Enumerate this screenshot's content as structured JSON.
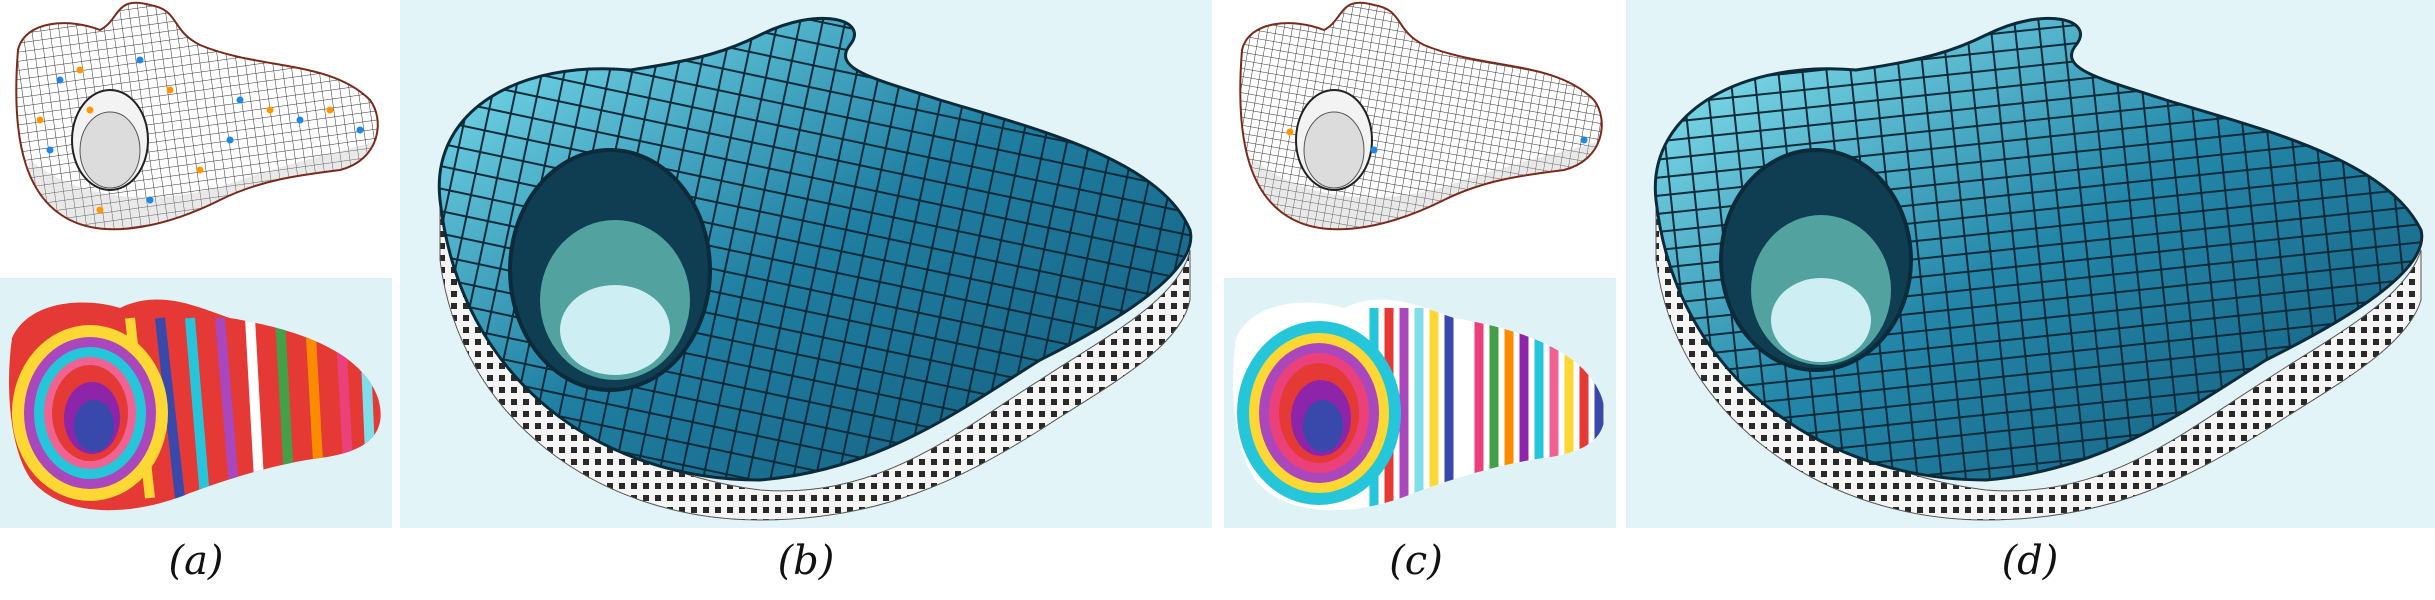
{
  "figure": {
    "captions": {
      "a": "(a)",
      "b": "(b)",
      "c": "(c)",
      "d": "(d)"
    }
  },
  "colors": {
    "wire_stroke": "#222222",
    "boundary_stroke": "#7a2a1a",
    "singular_blue": "#1e88e5",
    "singular_orange": "#ff9800",
    "glass_dark": "#145a7a",
    "glass_light": "#7fe3f2",
    "backdrop": "#dff3f7",
    "stripes": [
      "#e53935",
      "#fdd835",
      "#3949ab",
      "#26c6da",
      "#ab47bc",
      "#ffffff",
      "#43a047",
      "#fb8c00",
      "#ec407a",
      "#80deea",
      "#8e24aa",
      "#f06292"
    ]
  }
}
